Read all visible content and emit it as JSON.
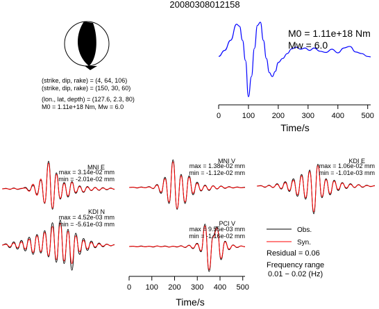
{
  "title": "20080308012158",
  "mechanism": {
    "line1": "(strike, dip, rake) = (4, 64, 106)",
    "line2": "(strike, dip, rake) = (150, 30, 60)",
    "line3": "(lon., lat, depth) = (127.6, 2.3, 80)",
    "line4": "M0 = 1.11e+18 Nm, Mw = 6.0",
    "beachball_colors": {
      "compression": "#000000",
      "dilatation": "#ffffff"
    }
  },
  "stf": {
    "m0_label": "M0 = 1.11e+18 Nm",
    "mw_label": "Mw = 6.0",
    "xlabel": "Time/s",
    "xticks": [
      "0",
      "100",
      "200",
      "300",
      "400",
      "500"
    ],
    "color": "#0000ff"
  },
  "legend": {
    "obs": "Obs.",
    "syn": "Syn.",
    "obs_color": "#000000",
    "syn_color": "#ff0000",
    "residual": "Residual = 0.06",
    "freq_label": "Frequency range",
    "freq_value": "0.01 − 0.02 (Hz)"
  },
  "waveform_axis": {
    "xlabel": "Time/s",
    "xticks": [
      "0",
      "100",
      "200",
      "300",
      "400",
      "500"
    ]
  },
  "stations": [
    {
      "name": "MNI E",
      "max": "max = 3.14e-02 mm",
      "min": "min = -2.01e-02 mm"
    },
    {
      "name": "MNI V",
      "max": "max = 1.38e-02 mm",
      "min": "min = -1.12e-02 mm"
    },
    {
      "name": "KDI E",
      "max": "max = 1.06e-02 mm",
      "min": "min = -1.01e-03 mm"
    },
    {
      "name": "KDI N",
      "max": "max = 4.52e-03 mm",
      "min": "min = -5.61e-03 mm"
    },
    {
      "name": "PCI V",
      "max": "max = 9.55e-03 mm",
      "min": "min = -1.16e-02 mm"
    }
  ],
  "chart_data": [
    {
      "type": "line",
      "description_role": "source time function",
      "x": [
        0,
        20,
        40,
        60,
        70,
        80,
        90,
        100,
        110,
        120,
        130,
        140,
        150,
        160,
        170,
        180,
        190,
        200,
        215,
        230,
        245,
        260,
        275,
        290,
        305,
        320,
        340,
        360,
        380,
        400,
        420,
        440,
        460,
        480,
        500,
        510
      ],
      "y": [
        0.15,
        0.3,
        0.55,
        0.95,
        0.9,
        0.55,
        0.05,
        -0.85,
        -0.35,
        0.35,
        0.92,
        1.0,
        0.55,
        0.1,
        -0.25,
        -0.35,
        -0.22,
        0.0,
        0.1,
        0.22,
        0.34,
        0.38,
        0.33,
        0.36,
        0.3,
        0.36,
        0.28,
        0.25,
        0.33,
        0.24,
        0.36,
        0.4,
        0.26,
        0.22,
        0.15,
        0.14
      ],
      "xlim": [
        0,
        510
      ],
      "xlabel": "Time/s",
      "color": "#0000ff"
    },
    {
      "type": "line",
      "description_role": "waveforms",
      "x_range": [
        0,
        510
      ],
      "xlabel": "Time/s",
      "traces": [
        {
          "station": "MNI E",
          "obs": [
            0.0,
            0.02,
            -0.02,
            0.03,
            -0.02,
            0.01,
            0.05,
            -0.06,
            0.12,
            -0.18,
            0.3,
            -0.5,
            0.95,
            -0.7,
            0.55,
            -0.35,
            0.22,
            -0.28,
            0.25,
            -0.15,
            0.1,
            -0.12,
            0.08,
            -0.06,
            0.05,
            -0.05,
            0.04,
            -0.03,
            0.03,
            -0.02
          ],
          "syn": [
            0.0,
            0.01,
            -0.01,
            0.02,
            -0.01,
            0.02,
            0.03,
            -0.08,
            0.16,
            -0.22,
            0.34,
            -0.48,
            0.88,
            -0.66,
            0.5,
            -0.32,
            0.18,
            -0.24,
            0.22,
            -0.12,
            0.08,
            -0.1,
            0.06,
            -0.05,
            0.04,
            -0.04,
            0.03,
            -0.02,
            0.02,
            -0.01
          ]
        },
        {
          "station": "MNI V",
          "obs": [
            0.0,
            0.01,
            -0.02,
            0.02,
            -0.01,
            0.03,
            -0.04,
            0.1,
            -0.2,
            0.35,
            -0.55,
            0.95,
            -0.75,
            0.45,
            -0.55,
            0.4,
            -0.25,
            0.18,
            -0.12,
            0.08,
            -0.1,
            0.06,
            -0.05,
            0.05,
            -0.03,
            0.03,
            -0.02,
            0.02,
            -0.01,
            0.01
          ],
          "syn": [
            0.0,
            0.01,
            -0.01,
            0.01,
            -0.01,
            0.02,
            -0.03,
            0.08,
            -0.16,
            0.3,
            -0.5,
            0.88,
            -0.72,
            0.4,
            -0.5,
            0.35,
            -0.2,
            0.14,
            -0.1,
            0.06,
            -0.08,
            0.05,
            -0.04,
            0.04,
            -0.02,
            0.02,
            -0.01,
            0.01,
            -0.01,
            0.0
          ]
        },
        {
          "station": "KDI E",
          "obs": [
            0.0,
            0.02,
            -0.04,
            0.03,
            -0.05,
            0.08,
            -0.1,
            0.15,
            -0.18,
            0.25,
            -0.35,
            0.4,
            -0.45,
            0.55,
            -0.95,
            0.75,
            -0.4,
            0.25,
            -0.3,
            0.2,
            -0.15,
            0.12,
            -0.08,
            0.08,
            -0.05,
            0.05,
            -0.04,
            0.03,
            -0.02,
            0.02
          ],
          "syn": [
            0.0,
            0.01,
            -0.03,
            0.02,
            -0.04,
            0.06,
            -0.08,
            0.12,
            -0.15,
            0.2,
            -0.3,
            0.35,
            -0.4,
            0.5,
            -0.88,
            0.7,
            -0.36,
            0.22,
            -0.26,
            0.17,
            -0.12,
            0.1,
            -0.06,
            0.06,
            -0.04,
            0.04,
            -0.03,
            0.02,
            -0.01,
            0.01
          ]
        },
        {
          "station": "KDI N",
          "obs": [
            0.0,
            0.05,
            -0.1,
            0.12,
            -0.15,
            0.18,
            -0.22,
            0.3,
            -0.35,
            0.4,
            -0.3,
            0.55,
            -0.45,
            0.85,
            -0.65,
            0.95,
            -0.7,
            0.6,
            -0.95,
            0.45,
            -0.35,
            0.25,
            -0.2,
            0.15,
            -0.1,
            0.08,
            -0.06,
            0.04,
            -0.03,
            0.02
          ],
          "syn": [
            0.0,
            0.03,
            -0.06,
            0.08,
            -0.1,
            0.12,
            -0.15,
            0.22,
            -0.28,
            0.35,
            -0.25,
            0.48,
            -0.4,
            0.7,
            -0.55,
            0.82,
            -0.6,
            0.52,
            -0.7,
            0.35,
            -0.25,
            0.18,
            -0.14,
            0.1,
            -0.07,
            0.05,
            -0.04,
            0.03,
            -0.02,
            0.01
          ]
        },
        {
          "station": "PCI V",
          "obs": [
            0.0,
            0.01,
            -0.01,
            0.02,
            -0.01,
            0.01,
            -0.02,
            0.02,
            -0.01,
            0.02,
            -0.02,
            0.01,
            -0.02,
            0.03,
            -0.04,
            0.05,
            -0.08,
            0.12,
            -0.2,
            0.85,
            -0.95,
            0.4,
            0.75,
            -0.5,
            0.2,
            -0.12,
            0.06,
            -0.04,
            0.02,
            -0.01
          ],
          "syn": [
            0.0,
            0.01,
            -0.01,
            0.01,
            -0.01,
            0.01,
            -0.01,
            0.02,
            -0.01,
            0.01,
            -0.02,
            0.01,
            -0.01,
            0.02,
            -0.03,
            0.04,
            -0.06,
            0.1,
            -0.16,
            0.78,
            -0.88,
            0.35,
            0.7,
            -0.45,
            0.18,
            -0.1,
            0.05,
            -0.03,
            0.02,
            -0.01
          ]
        }
      ]
    }
  ]
}
